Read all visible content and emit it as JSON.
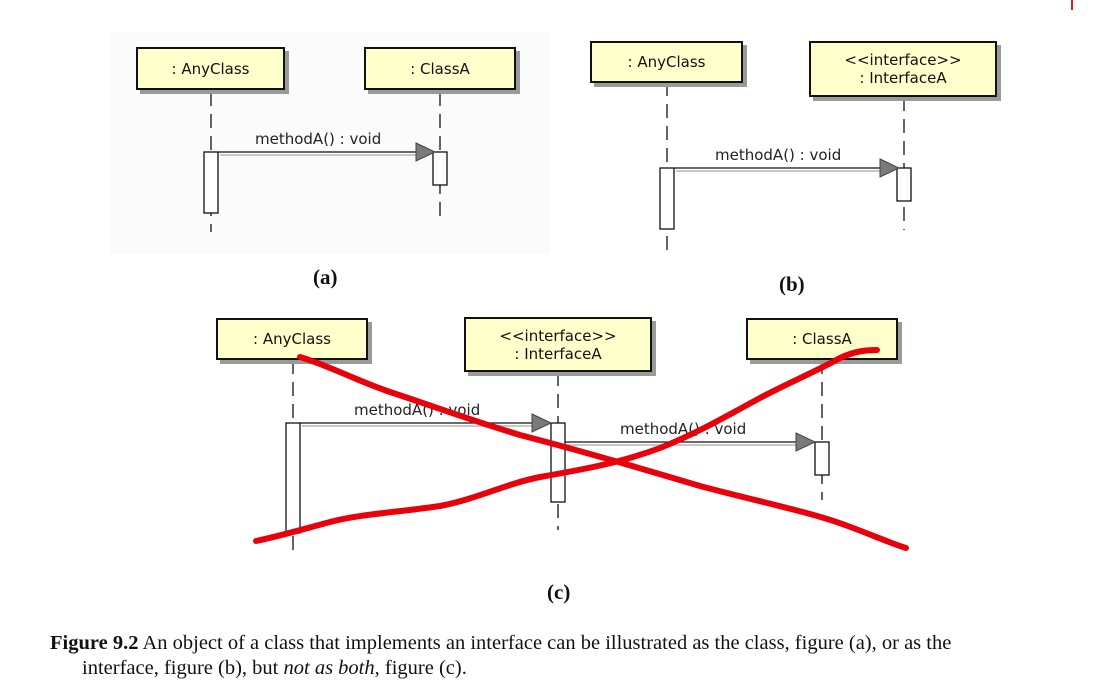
{
  "figure": {
    "a": {
      "label": "(a)",
      "lifelines": [
        {
          "line1": ": AnyClass",
          "line2": ""
        },
        {
          "line1": ": ClassA",
          "line2": ""
        }
      ],
      "message": "methodA() : void"
    },
    "b": {
      "label": "(b)",
      "lifelines": [
        {
          "line1": ": AnyClass",
          "line2": ""
        },
        {
          "line1": "<<interface>>",
          "line2": ": InterfaceA"
        }
      ],
      "message": "methodA() : void"
    },
    "c": {
      "label": "(c)",
      "lifelines": [
        {
          "line1": ": AnyClass",
          "line2": ""
        },
        {
          "line1": "<<interface>>",
          "line2": ": InterfaceA"
        },
        {
          "line1": ": ClassA",
          "line2": ""
        }
      ],
      "messages": [
        "methodA() : void",
        "methodA() : void"
      ]
    }
  },
  "caption": {
    "label": "Figure 9.2",
    "text1": " An object of a class that implements an interface can be illustrated as the class, figure (a), or as the",
    "text2a": "interface, figure (b), but ",
    "emph": "not as both",
    "text2b": ", figure (c)."
  },
  "colors": {
    "box_fill": "#ffffcc",
    "strike": "#e8000b",
    "arrow": "#7a7a7a"
  }
}
